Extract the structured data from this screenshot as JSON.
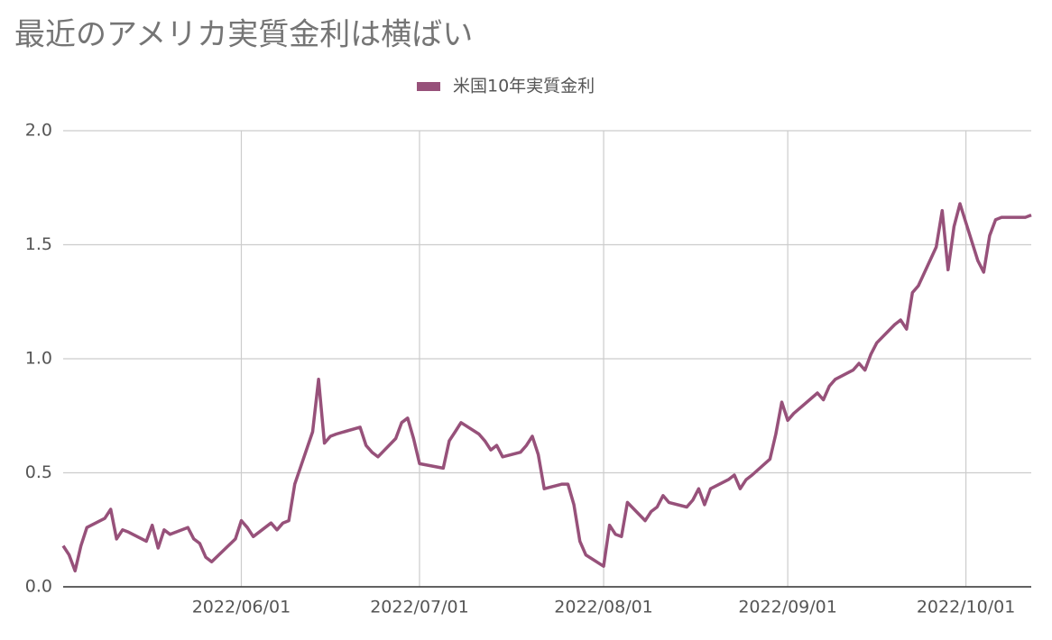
{
  "chart_data": {
    "type": "line",
    "title": "最近のアメリカ実質金利は横ばい",
    "x": [
      "2022/05/02",
      "2022/05/03",
      "2022/05/04",
      "2022/05/05",
      "2022/05/06",
      "2022/05/09",
      "2022/05/10",
      "2022/05/11",
      "2022/05/12",
      "2022/05/13",
      "2022/05/16",
      "2022/05/17",
      "2022/05/18",
      "2022/05/19",
      "2022/05/20",
      "2022/05/23",
      "2022/05/24",
      "2022/05/25",
      "2022/05/26",
      "2022/05/27",
      "2022/05/31",
      "2022/06/01",
      "2022/06/02",
      "2022/06/03",
      "2022/06/06",
      "2022/06/07",
      "2022/06/08",
      "2022/06/09",
      "2022/06/10",
      "2022/06/13",
      "2022/06/14",
      "2022/06/15",
      "2022/06/16",
      "2022/06/17",
      "2022/06/21",
      "2022/06/22",
      "2022/06/23",
      "2022/06/24",
      "2022/06/27",
      "2022/06/28",
      "2022/06/29",
      "2022/06/30",
      "2022/07/01",
      "2022/07/05",
      "2022/07/06",
      "2022/07/07",
      "2022/07/08",
      "2022/07/11",
      "2022/07/12",
      "2022/07/13",
      "2022/07/14",
      "2022/07/15",
      "2022/07/18",
      "2022/07/19",
      "2022/07/20",
      "2022/07/21",
      "2022/07/22",
      "2022/07/25",
      "2022/07/26",
      "2022/07/27",
      "2022/07/28",
      "2022/07/29",
      "2022/08/01",
      "2022/08/02",
      "2022/08/03",
      "2022/08/04",
      "2022/08/05",
      "2022/08/08",
      "2022/08/09",
      "2022/08/10",
      "2022/08/11",
      "2022/08/12",
      "2022/08/15",
      "2022/08/16",
      "2022/08/17",
      "2022/08/18",
      "2022/08/19",
      "2022/08/22",
      "2022/08/23",
      "2022/08/24",
      "2022/08/25",
      "2022/08/26",
      "2022/08/29",
      "2022/08/30",
      "2022/08/31",
      "2022/09/01",
      "2022/09/02",
      "2022/09/06",
      "2022/09/07",
      "2022/09/08",
      "2022/09/09",
      "2022/09/12",
      "2022/09/13",
      "2022/09/14",
      "2022/09/15",
      "2022/09/16",
      "2022/09/19",
      "2022/09/20",
      "2022/09/21",
      "2022/09/22",
      "2022/09/23",
      "2022/09/26",
      "2022/09/27",
      "2022/09/28",
      "2022/09/29",
      "2022/09/30",
      "2022/10/03",
      "2022/10/04",
      "2022/10/05",
      "2022/10/06",
      "2022/10/07",
      "2022/10/10",
      "2022/10/11",
      "2022/10/12"
    ],
    "series": [
      {
        "name": "米国10年実質金利",
        "color": "#97517a",
        "values": [
          0.18,
          0.14,
          0.07,
          0.18,
          0.26,
          0.3,
          0.34,
          0.21,
          0.25,
          0.24,
          0.2,
          0.27,
          0.17,
          0.25,
          0.23,
          0.26,
          0.21,
          0.19,
          0.13,
          0.11,
          0.21,
          0.29,
          0.26,
          0.22,
          0.28,
          0.25,
          0.28,
          0.29,
          0.45,
          0.68,
          0.91,
          0.63,
          0.66,
          0.67,
          0.7,
          0.62,
          0.59,
          0.57,
          0.65,
          0.72,
          0.74,
          0.65,
          0.54,
          0.52,
          0.64,
          0.68,
          0.72,
          0.67,
          0.64,
          0.6,
          0.62,
          0.57,
          0.59,
          0.62,
          0.66,
          0.58,
          0.43,
          0.45,
          0.45,
          0.36,
          0.2,
          0.14,
          0.09,
          0.27,
          0.23,
          0.22,
          0.37,
          0.29,
          0.33,
          0.35,
          0.4,
          0.37,
          0.35,
          0.38,
          0.43,
          0.36,
          0.43,
          0.47,
          0.49,
          0.43,
          0.47,
          0.49,
          0.56,
          0.67,
          0.81,
          0.73,
          0.76,
          0.85,
          0.82,
          0.88,
          0.91,
          0.95,
          0.98,
          0.95,
          1.02,
          1.07,
          1.15,
          1.17,
          1.13,
          1.29,
          1.32,
          1.49,
          1.65,
          1.39,
          1.58,
          1.68,
          1.43,
          1.38,
          1.54,
          1.61,
          1.62,
          1.62,
          1.62,
          1.63
        ]
      }
    ],
    "xlim": [
      "2022/05/02",
      "2022/10/12"
    ],
    "xticks": [
      "2022/06/01",
      "2022/07/01",
      "2022/08/01",
      "2022/09/01",
      "2022/10/01"
    ],
    "ylim": [
      0,
      2
    ],
    "yticks": [
      {
        "value": 0,
        "label": "0.0"
      },
      0.5,
      {
        "value": 1,
        "label": "1.0"
      },
      1.5,
      {
        "value": 2,
        "label": "2.0"
      }
    ],
    "grid": true,
    "legend": "top"
  }
}
